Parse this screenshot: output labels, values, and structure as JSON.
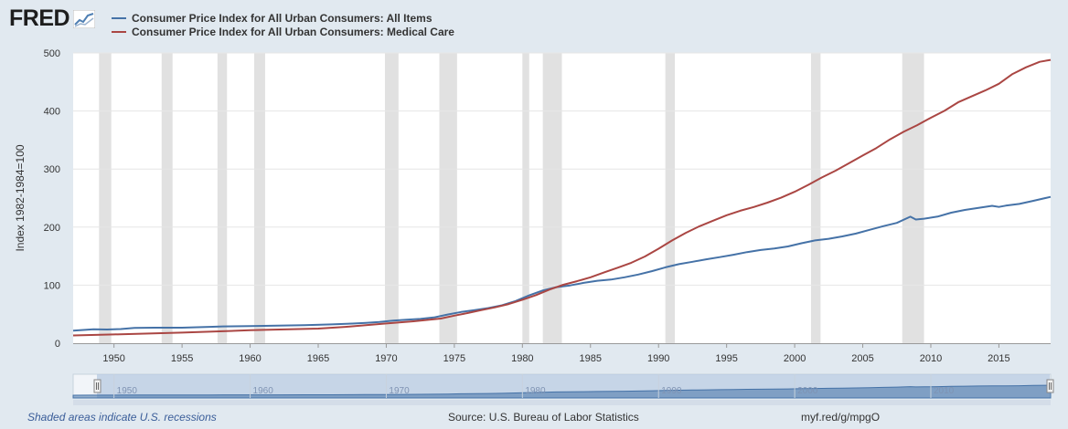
{
  "branding": {
    "logo_text": "FRED"
  },
  "legend": [
    {
      "label": "Consumer Price Index for All Urban Consumers: All Items",
      "color": "#4572a7"
    },
    {
      "label": "Consumer Price Index for All Urban Consumers: Medical Care",
      "color": "#aa4643"
    }
  ],
  "footer": {
    "recession_note": "Shaded areas indicate U.S. recessions",
    "source": "Source: U.S. Bureau of Labor Statistics",
    "short_url": "myf.red/g/mpgO"
  },
  "chart_data": {
    "type": "line",
    "ylabel": "Index 1982-1984=100",
    "xlabel": "",
    "xlim": [
      1947.0,
      2018.8
    ],
    "ylim": [
      0,
      500
    ],
    "yticks": [
      0,
      100,
      200,
      300,
      400,
      500
    ],
    "xticks": [
      1950,
      1955,
      1960,
      1965,
      1970,
      1975,
      1980,
      1985,
      1990,
      1995,
      2000,
      2005,
      2010,
      2015
    ],
    "navigator_ticks": [
      1950,
      1960,
      1970,
      1980,
      1990,
      2000,
      2010
    ],
    "recession_bands": [
      [
        1948.9,
        1949.8
      ],
      [
        1953.5,
        1954.3
      ],
      [
        1957.6,
        1958.3
      ],
      [
        1960.3,
        1961.1
      ],
      [
        1969.9,
        1970.9
      ],
      [
        1973.9,
        1975.2
      ],
      [
        1980.0,
        1980.5
      ],
      [
        1981.5,
        1982.9
      ],
      [
        1990.5,
        1991.2
      ],
      [
        2001.2,
        2001.9
      ],
      [
        2007.9,
        2009.5
      ]
    ],
    "series": [
      {
        "name": "Consumer Price Index for All Urban Consumers: All Items",
        "color": "#4572a7",
        "points": [
          [
            1947.0,
            21.5
          ],
          [
            1948.5,
            24.0
          ],
          [
            1949.5,
            23.6
          ],
          [
            1950.5,
            24.4
          ],
          [
            1951.5,
            26.3
          ],
          [
            1953,
            26.8
          ],
          [
            1955,
            26.8
          ],
          [
            1957,
            28.1
          ],
          [
            1958,
            28.9
          ],
          [
            1960,
            29.6
          ],
          [
            1962,
            30.2
          ],
          [
            1964,
            31.0
          ],
          [
            1966,
            32.4
          ],
          [
            1967.5,
            33.8
          ],
          [
            1968.5,
            35.0
          ],
          [
            1969.5,
            36.7
          ],
          [
            1970.5,
            38.8
          ],
          [
            1971.5,
            40.5
          ],
          [
            1972.5,
            41.8
          ],
          [
            1973.5,
            44.4
          ],
          [
            1974.5,
            49.3
          ],
          [
            1975.5,
            53.8
          ],
          [
            1976.5,
            56.9
          ],
          [
            1977.5,
            60.6
          ],
          [
            1978.5,
            65.2
          ],
          [
            1979.5,
            72.6
          ],
          [
            1980.5,
            82.4
          ],
          [
            1981.5,
            90.9
          ],
          [
            1982.5,
            96.5
          ],
          [
            1983.5,
            99.6
          ],
          [
            1984.5,
            103.9
          ],
          [
            1985.5,
            107.6
          ],
          [
            1986.5,
            109.6
          ],
          [
            1987.5,
            113.6
          ],
          [
            1988.5,
            118.3
          ],
          [
            1989.5,
            124.0
          ],
          [
            1990.5,
            130.7
          ],
          [
            1991.5,
            136.2
          ],
          [
            1992.5,
            140.3
          ],
          [
            1993.5,
            144.5
          ],
          [
            1994.5,
            148.2
          ],
          [
            1995.5,
            152.4
          ],
          [
            1996.5,
            156.9
          ],
          [
            1997.5,
            160.5
          ],
          [
            1998.5,
            163.0
          ],
          [
            1999.5,
            166.6
          ],
          [
            2000.5,
            172.2
          ],
          [
            2001.5,
            177.1
          ],
          [
            2002.5,
            179.9
          ],
          [
            2003.5,
            184.0
          ],
          [
            2004.5,
            188.9
          ],
          [
            2005.5,
            195.3
          ],
          [
            2006.5,
            201.6
          ],
          [
            2007.5,
            207.3
          ],
          [
            2008.5,
            218.0
          ],
          [
            2008.9,
            213.0
          ],
          [
            2009.5,
            214.5
          ],
          [
            2010.5,
            218.1
          ],
          [
            2011.5,
            224.9
          ],
          [
            2012.5,
            229.6
          ],
          [
            2013.5,
            233.0
          ],
          [
            2014.5,
            236.7
          ],
          [
            2015.0,
            234.8
          ],
          [
            2015.5,
            237.0
          ],
          [
            2016.5,
            240.0
          ],
          [
            2017.5,
            245.1
          ],
          [
            2018.8,
            252.0
          ]
        ]
      },
      {
        "name": "Consumer Price Index for All Urban Consumers: Medical Care",
        "color": "#aa4643",
        "points": [
          [
            1947.0,
            13.3
          ],
          [
            1950,
            15.1
          ],
          [
            1955,
            18.2
          ],
          [
            1960,
            22.3
          ],
          [
            1965,
            25.2
          ],
          [
            1967,
            28.2
          ],
          [
            1970,
            34.0
          ],
          [
            1972,
            37.8
          ],
          [
            1974,
            42.4
          ],
          [
            1975,
            47.5
          ],
          [
            1976,
            52.0
          ],
          [
            1977,
            57.0
          ],
          [
            1978,
            61.8
          ],
          [
            1979,
            67.5
          ],
          [
            1980,
            74.9
          ],
          [
            1981,
            82.9
          ],
          [
            1982,
            92.5
          ],
          [
            1983,
            100.6
          ],
          [
            1984,
            106.8
          ],
          [
            1985,
            113.5
          ],
          [
            1986,
            122.0
          ],
          [
            1987,
            130.1
          ],
          [
            1988,
            138.6
          ],
          [
            1989,
            149.3
          ],
          [
            1990,
            162.8
          ],
          [
            1991,
            177.0
          ],
          [
            1992,
            190.1
          ],
          [
            1993,
            201.4
          ],
          [
            1994,
            211.0
          ],
          [
            1995,
            220.5
          ],
          [
            1996,
            228.2
          ],
          [
            1997,
            234.6
          ],
          [
            1998,
            242.1
          ],
          [
            1999,
            250.6
          ],
          [
            2000,
            260.8
          ],
          [
            2001,
            272.8
          ],
          [
            2002,
            285.6
          ],
          [
            2003,
            297.1
          ],
          [
            2004,
            310.1
          ],
          [
            2005,
            323.2
          ],
          [
            2006,
            336.2
          ],
          [
            2007,
            351.1
          ],
          [
            2008,
            364.1
          ],
          [
            2009,
            375.6
          ],
          [
            2010,
            388.4
          ],
          [
            2011,
            400.3
          ],
          [
            2012,
            414.9
          ],
          [
            2013,
            425.1
          ],
          [
            2014,
            435.3
          ],
          [
            2015,
            446.8
          ],
          [
            2016,
            463.7
          ],
          [
            2017,
            475.3
          ],
          [
            2018,
            484.7
          ],
          [
            2018.8,
            488.0
          ]
        ]
      }
    ]
  }
}
